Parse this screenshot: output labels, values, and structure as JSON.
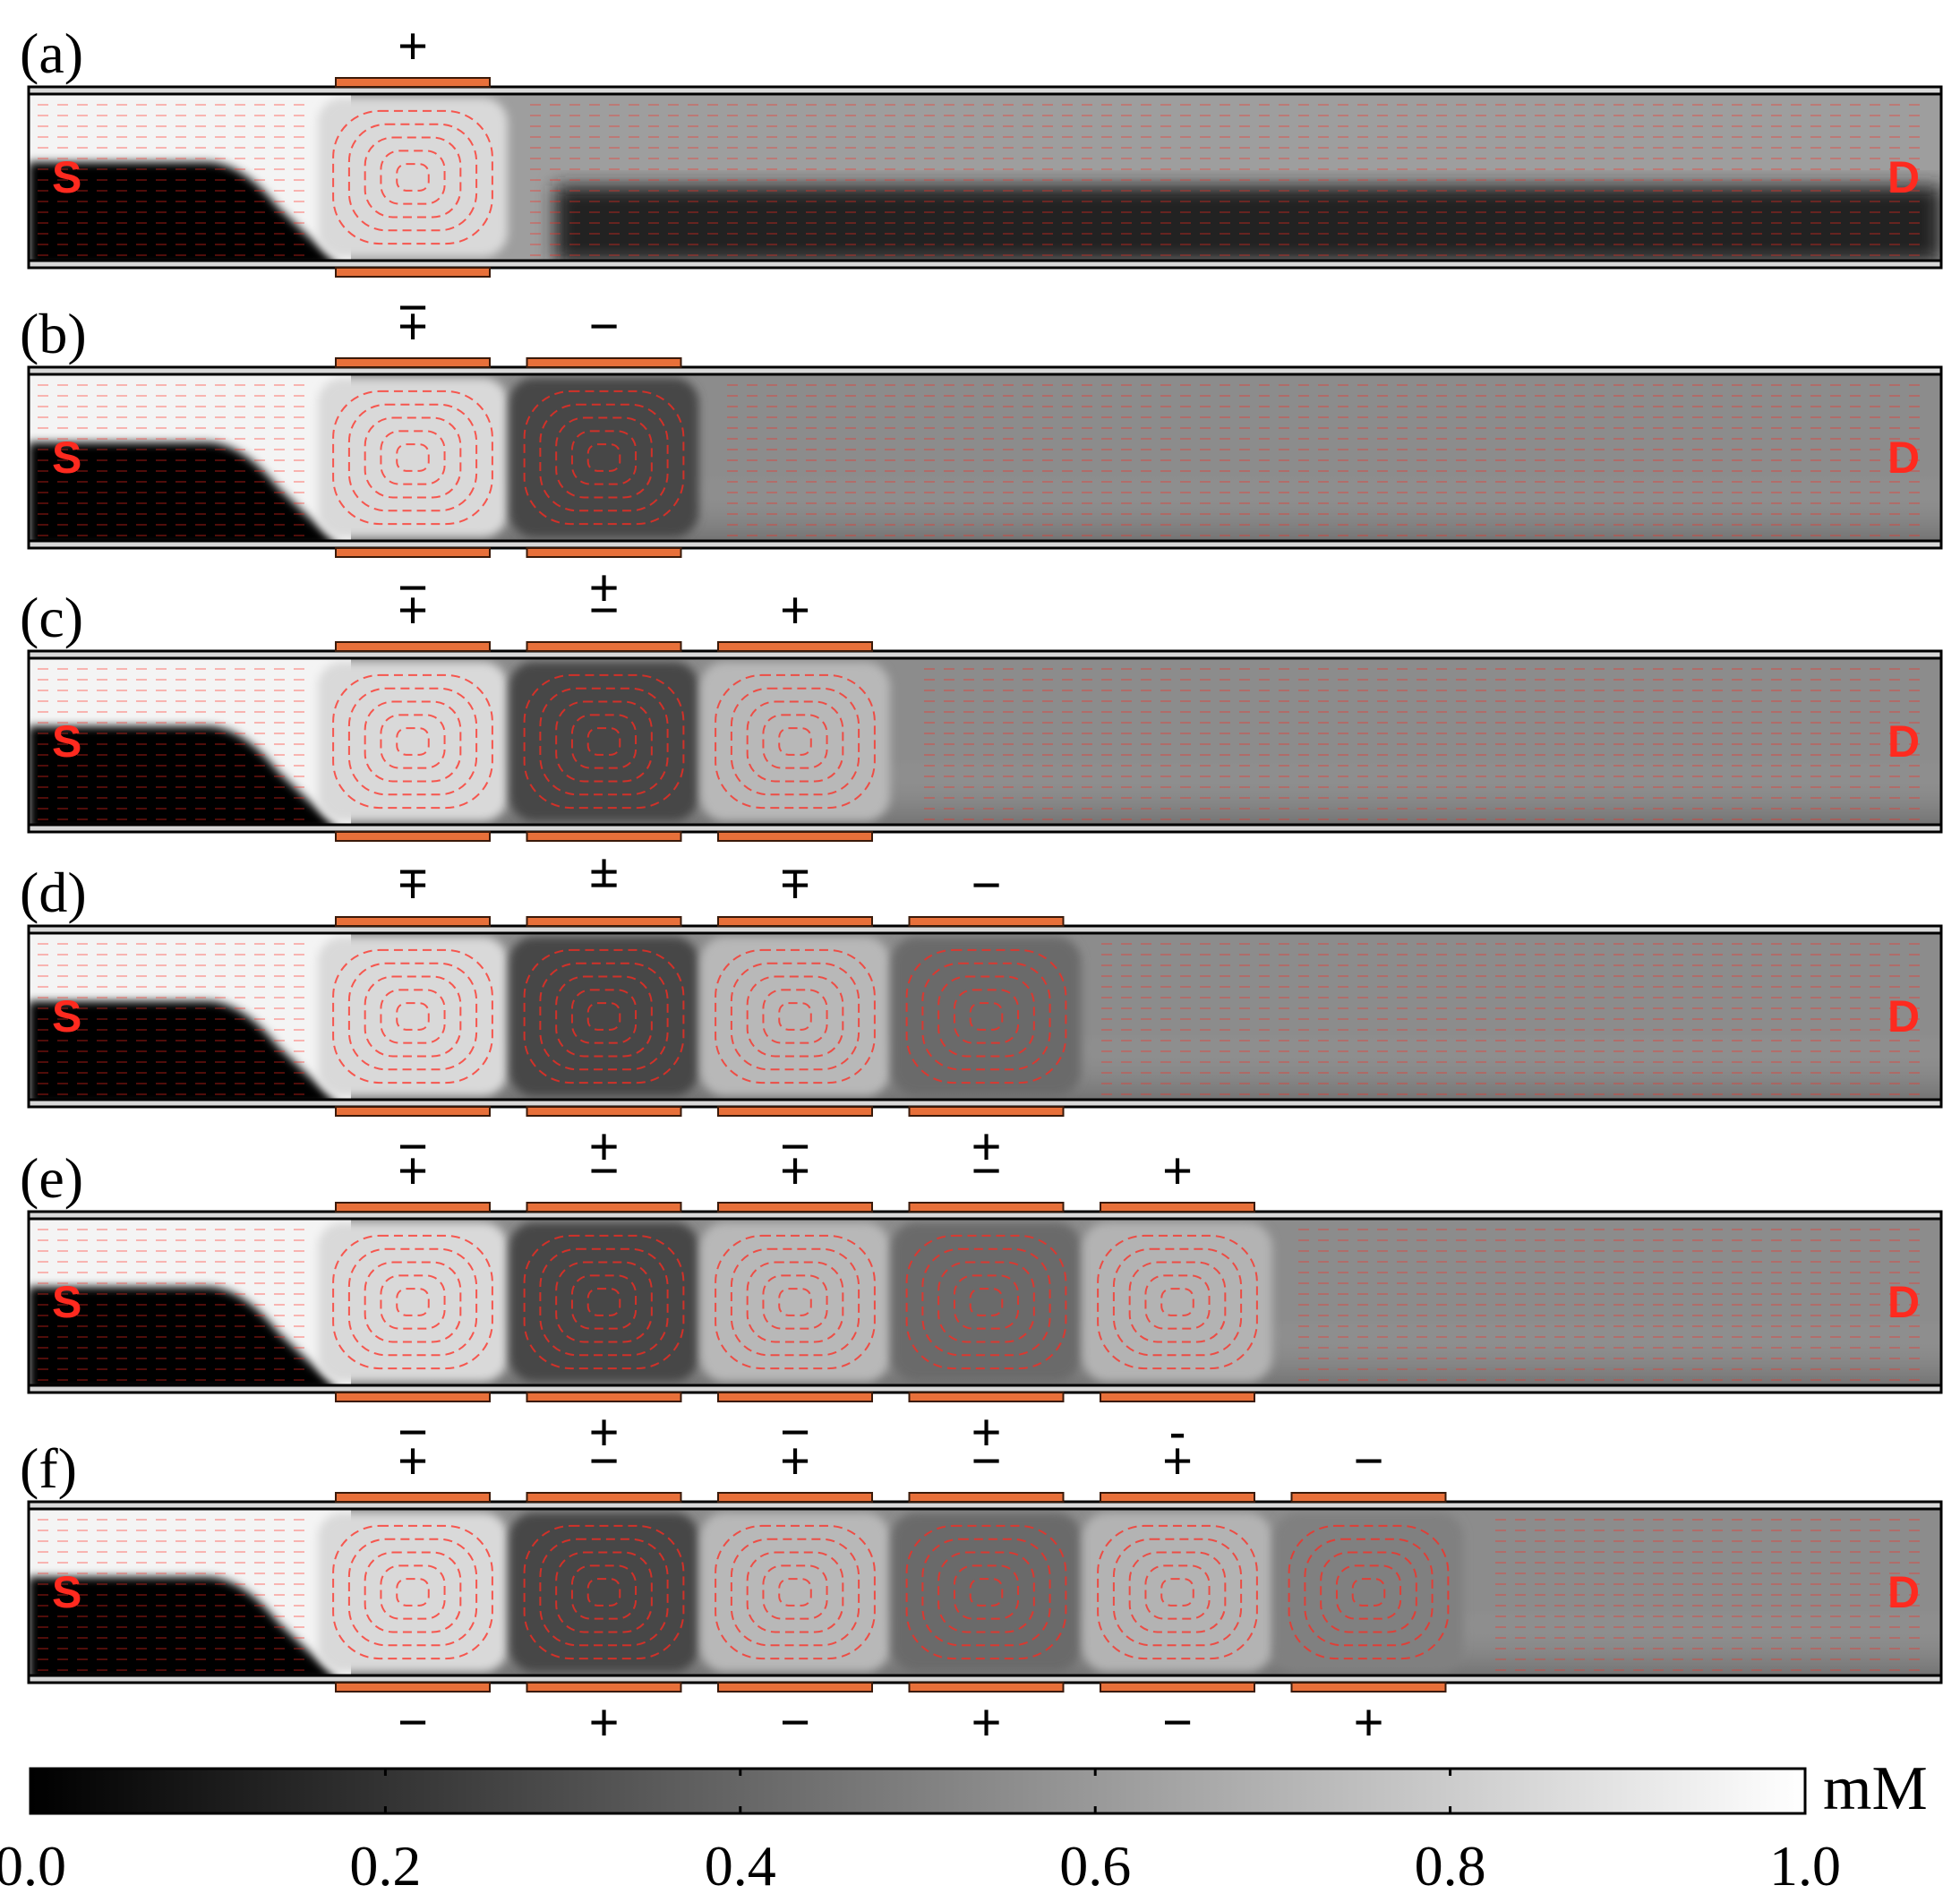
{
  "panels": [
    {
      "label": "(a)",
      "top_signs": [
        "+"
      ],
      "bottom_signs": [
        "−"
      ],
      "vortex_shades": [
        0.85
      ]
    },
    {
      "label": "(b)",
      "top_signs": [
        "+",
        "−"
      ],
      "bottom_signs": [
        "−",
        "+"
      ],
      "vortex_shades": [
        0.85,
        0.28
      ]
    },
    {
      "label": "(c)",
      "top_signs": [
        "+",
        "−",
        "+"
      ],
      "bottom_signs": [
        "−",
        "+",
        "−"
      ],
      "vortex_shades": [
        0.85,
        0.28,
        0.72
      ]
    },
    {
      "label": "(d)",
      "top_signs": [
        "+",
        "−",
        "+",
        "−"
      ],
      "bottom_signs": [
        "−",
        "+",
        "−",
        "+"
      ],
      "vortex_shades": [
        0.85,
        0.28,
        0.72,
        0.42
      ]
    },
    {
      "label": "(e)",
      "top_signs": [
        "+",
        "−",
        "+",
        "−",
        "+"
      ],
      "bottom_signs": [
        "−",
        "+",
        "−",
        "+",
        "-"
      ],
      "vortex_shades": [
        0.85,
        0.28,
        0.72,
        0.42,
        0.7
      ]
    },
    {
      "label": "(f)",
      "top_signs": [
        "+",
        "−",
        "+",
        "−",
        "+",
        "−"
      ],
      "bottom_signs": [
        "−",
        "+",
        "−",
        "+",
        "−",
        "+"
      ],
      "vortex_shades": [
        0.85,
        0.28,
        0.72,
        0.42,
        0.7,
        0.5
      ]
    }
  ],
  "source_label": "S",
  "drain_label": "D",
  "colorbar": {
    "unit": "mM",
    "min": 0.0,
    "max": 1.0,
    "ticks": [
      "0.0",
      "0.2",
      "0.4",
      "0.6",
      "0.8",
      "1.0"
    ]
  },
  "colors": {
    "electrode": "#e8703a",
    "velocity_arrows": "#ff2a1f",
    "labels_sd": "#ff2a1f"
  }
}
